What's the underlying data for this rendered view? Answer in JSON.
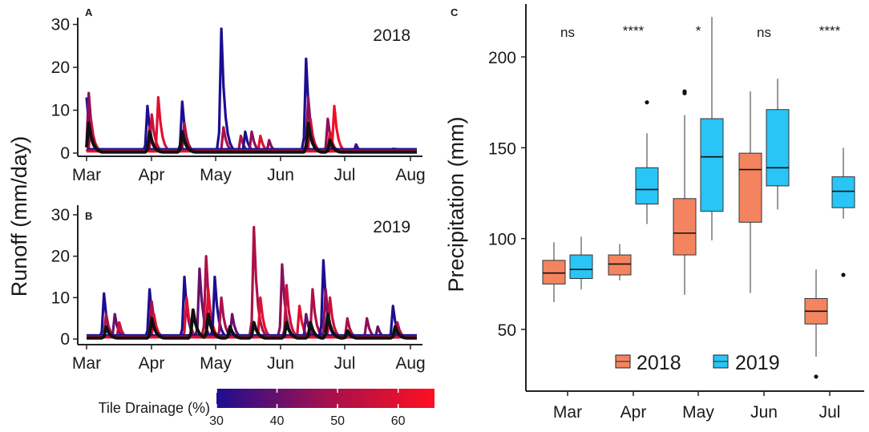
{
  "chart_data": [
    {
      "id": "A",
      "type": "line",
      "panel_label": "A",
      "year_label": "2018",
      "ylabel": "Runoff (mm/day)",
      "x_tick_labels": [
        "Mar",
        "Apr",
        "May",
        "Jun",
        "Jul",
        "Aug"
      ],
      "y_ticks": [
        0,
        10,
        20,
        30
      ],
      "ylim": [
        0,
        30
      ],
      "xlim_days": [
        0,
        152
      ],
      "peaks_day_value_tile": [
        [
          0,
          13,
          30
        ],
        [
          1,
          14,
          45
        ],
        [
          2,
          8,
          55
        ],
        [
          28,
          11,
          30
        ],
        [
          29,
          6,
          50
        ],
        [
          30,
          9,
          55
        ],
        [
          33,
          13,
          60
        ],
        [
          44,
          12,
          30
        ],
        [
          45,
          7,
          50
        ],
        [
          62,
          29,
          30
        ],
        [
          63,
          6,
          50
        ],
        [
          71,
          4,
          50
        ],
        [
          73,
          5,
          30
        ],
        [
          76,
          5,
          45
        ],
        [
          80,
          4,
          60
        ],
        [
          84,
          3,
          45
        ],
        [
          101,
          22,
          30
        ],
        [
          102,
          13,
          45
        ],
        [
          103,
          8,
          55
        ],
        [
          111,
          8,
          45
        ],
        [
          114,
          11,
          63
        ],
        [
          112,
          5,
          60
        ],
        [
          124,
          2,
          35
        ],
        [
          141,
          1,
          40
        ],
        [
          142,
          1,
          60
        ]
      ],
      "mean_peaks_day_value": [
        [
          1,
          7
        ],
        [
          29,
          5
        ],
        [
          44,
          5
        ],
        [
          102,
          7
        ],
        [
          112,
          3
        ]
      ]
    },
    {
      "id": "B",
      "type": "line",
      "panel_label": "B",
      "year_label": "2019",
      "ylabel": "Runoff (mm/day)",
      "x_tick_labels": [
        "Mar",
        "Apr",
        "May",
        "Jun",
        "Jul",
        "Aug"
      ],
      "y_ticks": [
        0,
        10,
        20,
        30
      ],
      "ylim": [
        0,
        30
      ],
      "xlim_days": [
        0,
        152
      ],
      "peaks_day_value_tile": [
        [
          8,
          11,
          30
        ],
        [
          9,
          6,
          50
        ],
        [
          13,
          6,
          40
        ],
        [
          15,
          4,
          55
        ],
        [
          29,
          12,
          30
        ],
        [
          30,
          9,
          50
        ],
        [
          31,
          6,
          60
        ],
        [
          45,
          15,
          30
        ],
        [
          46,
          10,
          60
        ],
        [
          52,
          17,
          40
        ],
        [
          55,
          20,
          50
        ],
        [
          56,
          12,
          60
        ],
        [
          59,
          15,
          30
        ],
        [
          62,
          10,
          50
        ],
        [
          67,
          6,
          40
        ],
        [
          77,
          27,
          50
        ],
        [
          80,
          10,
          60
        ],
        [
          90,
          18,
          45
        ],
        [
          92,
          13,
          55
        ],
        [
          98,
          8,
          60
        ],
        [
          101,
          6,
          40
        ],
        [
          104,
          12,
          50
        ],
        [
          109,
          19,
          30
        ],
        [
          110,
          12,
          45
        ],
        [
          112,
          10,
          55
        ],
        [
          120,
          5,
          50
        ],
        [
          129,
          5,
          45
        ],
        [
          134,
          3,
          40
        ],
        [
          141,
          8,
          30
        ],
        [
          143,
          4,
          50
        ]
      ],
      "mean_peaks_day_value": [
        [
          9,
          3
        ],
        [
          30,
          5
        ],
        [
          49,
          7
        ],
        [
          56,
          6
        ],
        [
          66,
          3
        ],
        [
          77,
          4
        ],
        [
          92,
          4
        ],
        [
          103,
          4
        ],
        [
          111,
          6
        ],
        [
          120,
          2
        ],
        [
          142,
          3
        ]
      ]
    },
    {
      "id": "C",
      "type": "box",
      "panel_label": "C",
      "ylabel": "Precipitation (mm)",
      "categories": [
        "Mar",
        "Apr",
        "May",
        "Jun",
        "Jul"
      ],
      "y_ticks": [
        50,
        100,
        150,
        200
      ],
      "ylim": [
        20,
        222
      ],
      "significance": [
        "ns",
        "****",
        "*",
        "ns",
        "****"
      ],
      "series": [
        {
          "name": "2018",
          "color": "#f4845f",
          "boxes": [
            {
              "min": 65,
              "q1": 75,
              "median": 81,
              "q3": 88,
              "max": 98,
              "outliers": []
            },
            {
              "min": 77,
              "q1": 80,
              "median": 86,
              "q3": 91,
              "max": 97,
              "outliers": []
            },
            {
              "min": 69,
              "q1": 91,
              "median": 103,
              "q3": 122,
              "max": 168,
              "outliers": [
                180,
                181
              ]
            },
            {
              "min": 70,
              "q1": 109,
              "median": 138,
              "q3": 147,
              "max": 181,
              "outliers": []
            },
            {
              "min": 35,
              "q1": 53,
              "median": 60,
              "q3": 67,
              "max": 83,
              "outliers": [
                24
              ]
            }
          ]
        },
        {
          "name": "2019",
          "color": "#29c5f6",
          "boxes": [
            {
              "min": 72,
              "q1": 78,
              "median": 83,
              "q3": 91,
              "max": 101,
              "outliers": []
            },
            {
              "min": 108,
              "q1": 119,
              "median": 127,
              "q3": 139,
              "max": 158,
              "outliers": [
                175
              ]
            },
            {
              "min": 99,
              "q1": 115,
              "median": 145,
              "q3": 166,
              "max": 222,
              "outliers": []
            },
            {
              "min": 116,
              "q1": 129,
              "median": 139,
              "q3": 171,
              "max": 188,
              "outliers": []
            },
            {
              "min": 111,
              "q1": 117,
              "median": 126,
              "q3": 134,
              "max": 150,
              "outliers": [
                80
              ]
            }
          ]
        }
      ]
    }
  ],
  "colorbar": {
    "title": "Tile Drainage (%)",
    "ticks": [
      "30",
      "40",
      "50",
      "60"
    ],
    "range": [
      30,
      66
    ],
    "color_low": "#1d0e91",
    "color_mid": "#a3104f",
    "color_high": "#ff1020"
  },
  "mean_line_color": "#111111"
}
